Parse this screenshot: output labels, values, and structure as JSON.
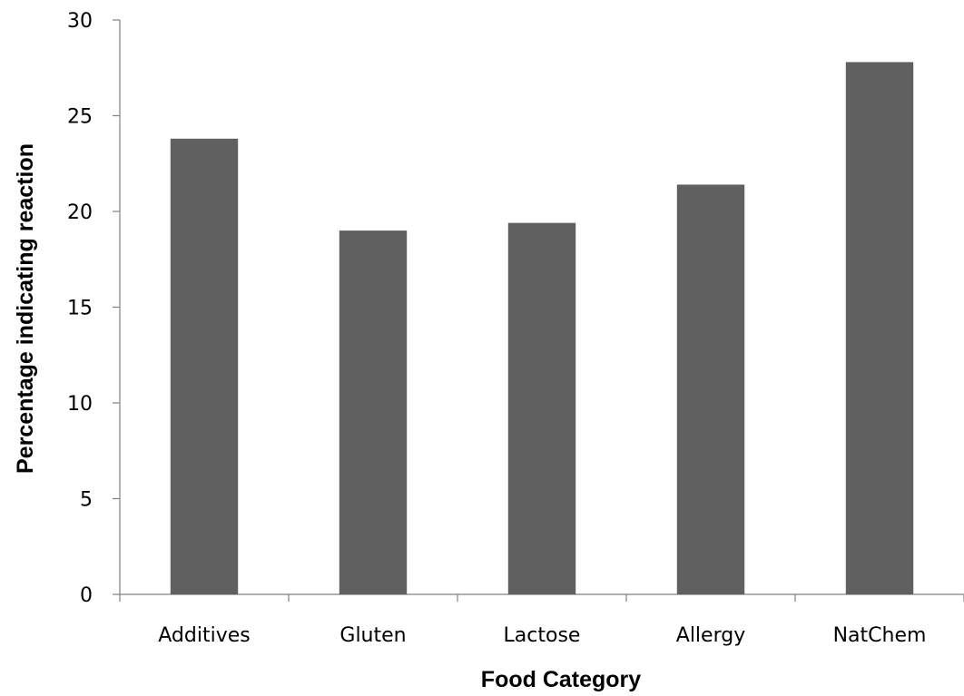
{
  "chart_data": {
    "type": "bar",
    "title": "",
    "xlabel": "Food Category",
    "ylabel": "Percentage indicating reaction",
    "categories": [
      "Additives",
      "Gluten",
      "Lactose",
      "Allergy",
      "NatChem"
    ],
    "values": [
      23.8,
      19.0,
      19.4,
      21.4,
      27.8
    ],
    "ylim": [
      0,
      30
    ],
    "yticks": [
      "0",
      "5",
      "10",
      "15",
      "20",
      "25",
      "30"
    ],
    "grid": false,
    "legend": "none",
    "bar_color": "#606060",
    "axis_color": "#808080"
  }
}
